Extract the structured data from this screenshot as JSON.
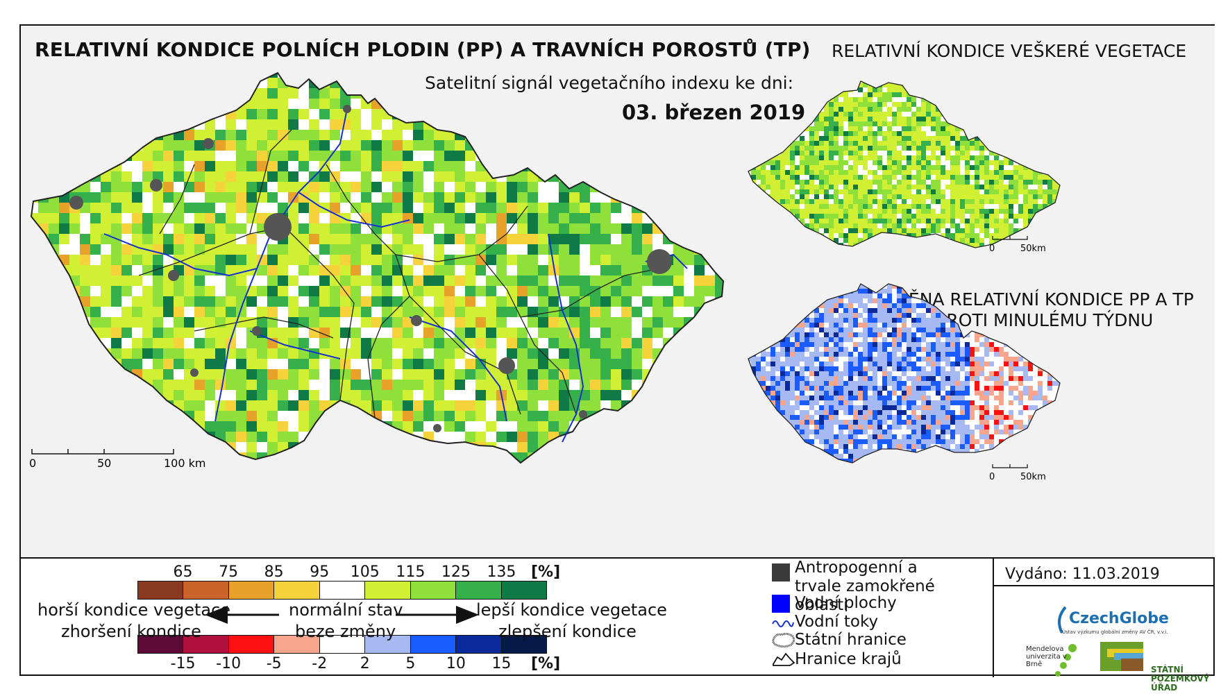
{
  "titles": {
    "main": "RELATIVNÍ KONDICE POLNÍCH PLODIN (PP) A TRAVNÍCH POROSTŮ (TP)",
    "subtitle": "Satelitní signál vegetačního indexu ke dni:",
    "date": "03. březen 2019",
    "vegetation_map": "RELATIVNÍ KONDICE VEŠKERÉ VEGETACE",
    "change_map": "ZMĚNA RELATIVNÍ KONDICE PP A TP OPROTI MINULÉMU TÝDNU"
  },
  "scale_main": {
    "labels": [
      "0",
      "50",
      "100 km"
    ]
  },
  "scale_veg": {
    "labels": [
      "0",
      "50km"
    ]
  },
  "scale_change": {
    "labels": [
      "0",
      "50km"
    ]
  },
  "legend_condition": {
    "values": [
      "65",
      "75",
      "85",
      "95",
      "105",
      "115",
      "125",
      "135"
    ],
    "unit": "[%]",
    "colors": [
      "#8b3a22",
      "#c9632a",
      "#e8a22a",
      "#f6d33a",
      "#ffffff",
      "#d2f033",
      "#8fe03a",
      "#35b04a",
      "#0f7a45"
    ]
  },
  "legend_change": {
    "values": [
      "-15",
      "-10",
      "-5",
      "-2",
      "2",
      "5",
      "10",
      "15"
    ],
    "unit": "[%]",
    "colors": [
      "#5d0a36",
      "#b0103e",
      "#ff1010",
      "#f7a58c",
      "#ffffff",
      "#a6b9f2",
      "#1a5cff",
      "#0a2a9a",
      "#061a4a"
    ]
  },
  "legend_labels": {
    "worse_vegetation": "horší kondice vegetace",
    "worse_change": "zhoršení kondice",
    "normal_state": "normální stav",
    "no_change": "beze změny",
    "better_vegetation": "lepší kondice vegetace",
    "better_change": "zlepšení kondice"
  },
  "map_legend": {
    "anthropogenic": "Antropogenní a trvale zamokřené oblasti",
    "water_bodies": "Vodní plochy",
    "rivers": "Vodní toky",
    "state_border": "Státní hranice",
    "regions_border": "Hranice krajů"
  },
  "issued": "Vydáno: 11.03.2019",
  "logos": {
    "czechglobe": "CzechGlobe",
    "czechglobe_sub": "Ústav výzkumu globální změny AV ČR, v.v.i.",
    "mendel": "Mendelova univerzita v Brně",
    "spu": "STÁTNÍ POZEMKOVÝ ÚŘAD"
  }
}
